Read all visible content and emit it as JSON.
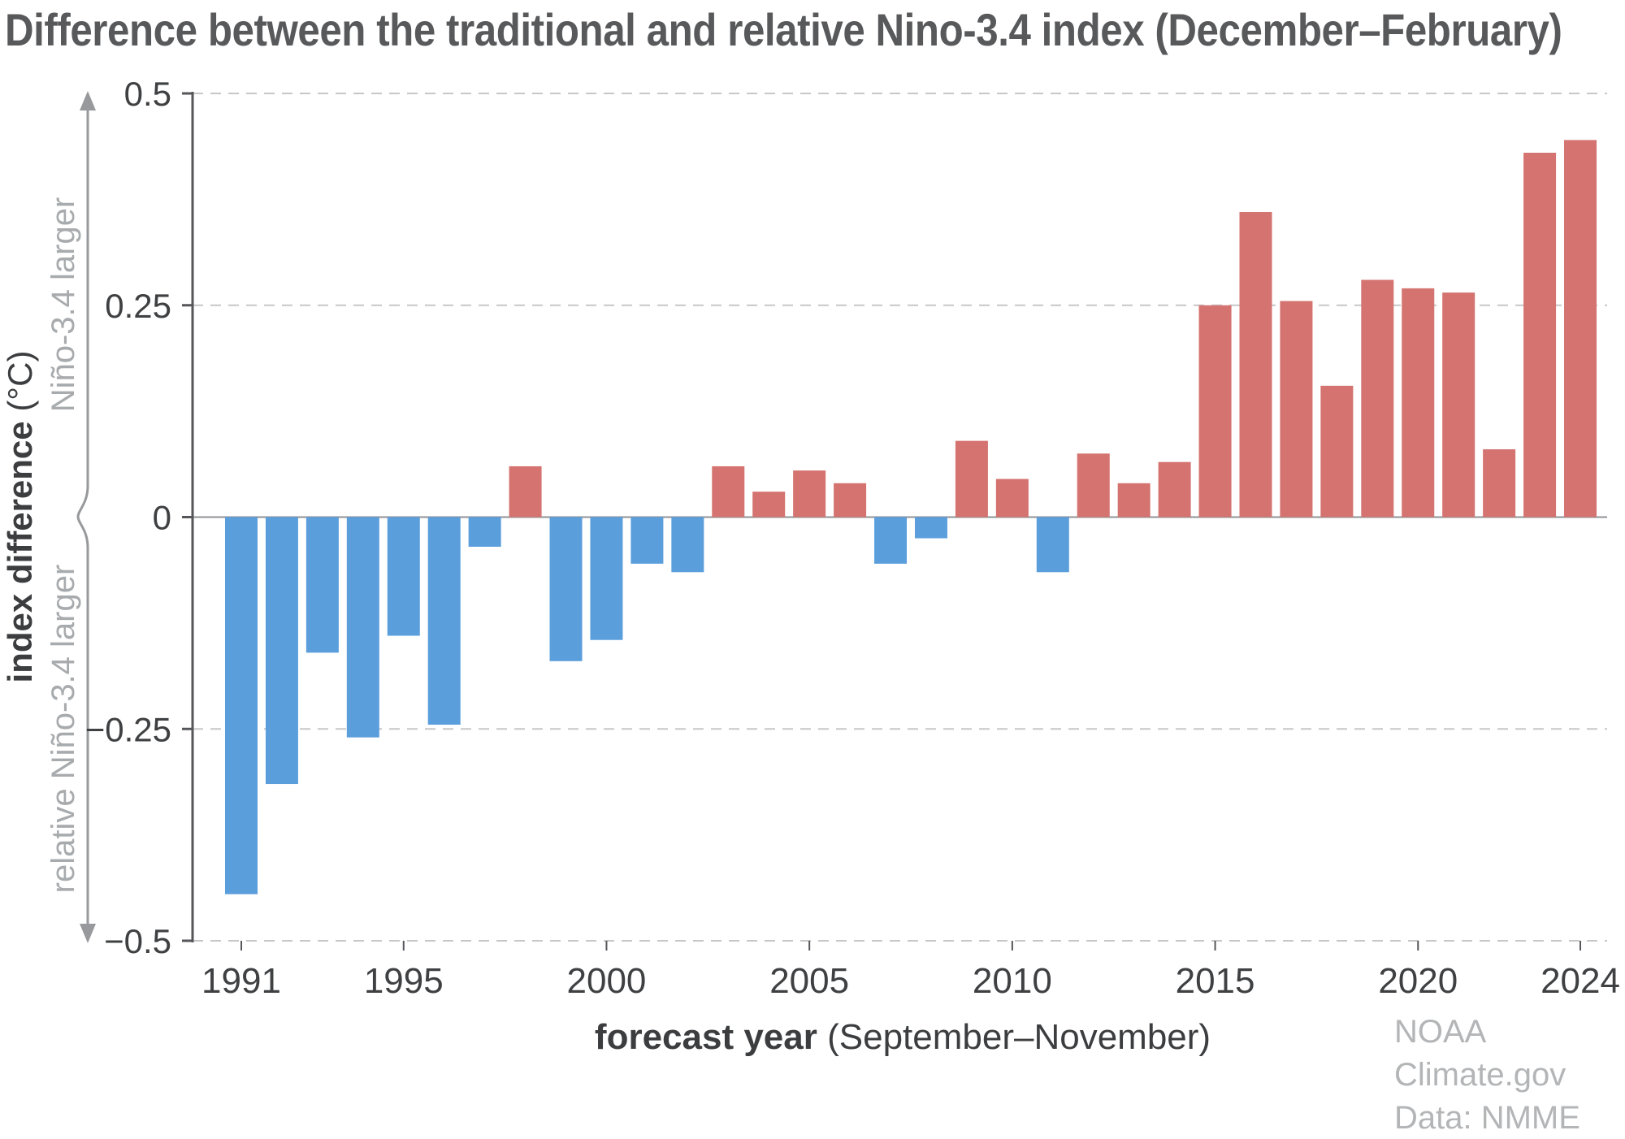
{
  "title": "Difference between the traditional and relative Nino-3.4 index (December–February)",
  "axes": {
    "y_label_bold": "index difference",
    "y_label_unit": " (°C)",
    "y_region_top": "Niño-3.4 larger",
    "y_region_bottom": "relative Niño-3.4 larger",
    "x_label_bold": "forecast year",
    "x_label_rest": " (September–November)"
  },
  "attribution": {
    "line1": "NOAA Climate.gov",
    "line2": "Data: NMME"
  },
  "colors": {
    "positive": "#d4736f",
    "negative": "#5b9edc",
    "grid": "#c7c7c7",
    "zero_line": "#8f9194",
    "axis": "#55565a",
    "tick_text": "#3f4042",
    "title": "#58595b",
    "muted": "#a8abad",
    "arrow": "#97999c"
  },
  "chart_data": {
    "type": "bar",
    "title": "Difference between the traditional and relative Nino-3.4 index (December–February)",
    "xlabel": "forecast year (September–November)",
    "ylabel": "index difference (°C)",
    "ylim": [
      -0.5,
      0.5
    ],
    "grid": "horizontal dashed at 0.5, 0.25, -0.25, -0.5; solid line at 0",
    "legend": "none; positive bars red mean Niño-3.4 larger, negative bars blue mean relative Niño-3.4 larger",
    "positive_color": "#d4736f",
    "negative_color": "#5b9edc",
    "yticks": [
      0.5,
      0.25,
      0,
      -0.25,
      -0.5
    ],
    "ytick_labels": [
      "0.5",
      "0.25",
      "0",
      "−0.25",
      "−0.5"
    ],
    "xticks": [
      1991,
      1995,
      2000,
      2005,
      2010,
      2015,
      2020,
      2024
    ],
    "x": [
      1991,
      1992,
      1993,
      1994,
      1995,
      1996,
      1997,
      1998,
      1999,
      2000,
      2001,
      2002,
      2003,
      2004,
      2005,
      2006,
      2007,
      2008,
      2009,
      2010,
      2011,
      2012,
      2013,
      2014,
      2015,
      2016,
      2017,
      2018,
      2019,
      2020,
      2021,
      2022,
      2023,
      2024
    ],
    "values": [
      -0.445,
      -0.315,
      -0.16,
      -0.26,
      -0.14,
      -0.245,
      -0.035,
      0.06,
      -0.17,
      -0.145,
      -0.055,
      -0.065,
      0.06,
      0.03,
      0.055,
      0.04,
      -0.055,
      -0.025,
      0.09,
      0.045,
      -0.065,
      0.075,
      0.04,
      0.065,
      0.25,
      0.36,
      0.255,
      0.155,
      0.28,
      0.27,
      0.265,
      0.08,
      0.43,
      0.445
    ]
  }
}
